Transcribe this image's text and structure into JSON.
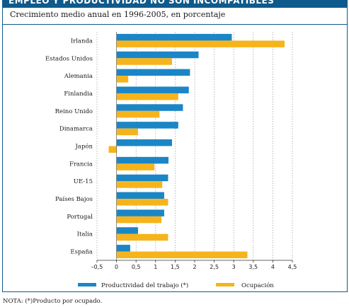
{
  "header": {
    "banner_text": "EMPLEO Y PRODUCTIVIDAD NO SON INCOMPATIBLES",
    "subtitle": "Crecimiento medio anual en 1996-2005, en porcentaje"
  },
  "chart_data": {
    "type": "bar",
    "orientation": "horizontal",
    "categories": [
      "Irlanda",
      "Estados Unidos",
      "Alemania",
      "Finlandia",
      "Reino Unido",
      "Dinamarca",
      "Japón",
      "Francia",
      "UE-15",
      "Países Bajos",
      "Portugal",
      "Italia",
      "España"
    ],
    "series": [
      {
        "name": "Productividad del trabajo (*)",
        "color": "#1b86c6",
        "values": [
          2.95,
          2.1,
          1.88,
          1.85,
          1.7,
          1.58,
          1.42,
          1.33,
          1.32,
          1.22,
          1.22,
          0.55,
          0.35
        ]
      },
      {
        "name": "Ocupación",
        "color": "#f6b41c",
        "values": [
          4.3,
          1.42,
          0.3,
          1.58,
          1.1,
          0.55,
          -0.2,
          0.97,
          1.17,
          1.32,
          1.15,
          1.32,
          3.35
        ]
      }
    ],
    "xticks": [
      "–0,5",
      "0",
      "0,5",
      "1",
      "1,5",
      "2",
      "2,5",
      "3",
      "3,5",
      "4",
      "4,5"
    ],
    "xlim": [
      -0.5,
      4.5
    ],
    "grid": "vertical"
  },
  "footer": {
    "note": "NOTA: (*)Producto por ocupado."
  }
}
